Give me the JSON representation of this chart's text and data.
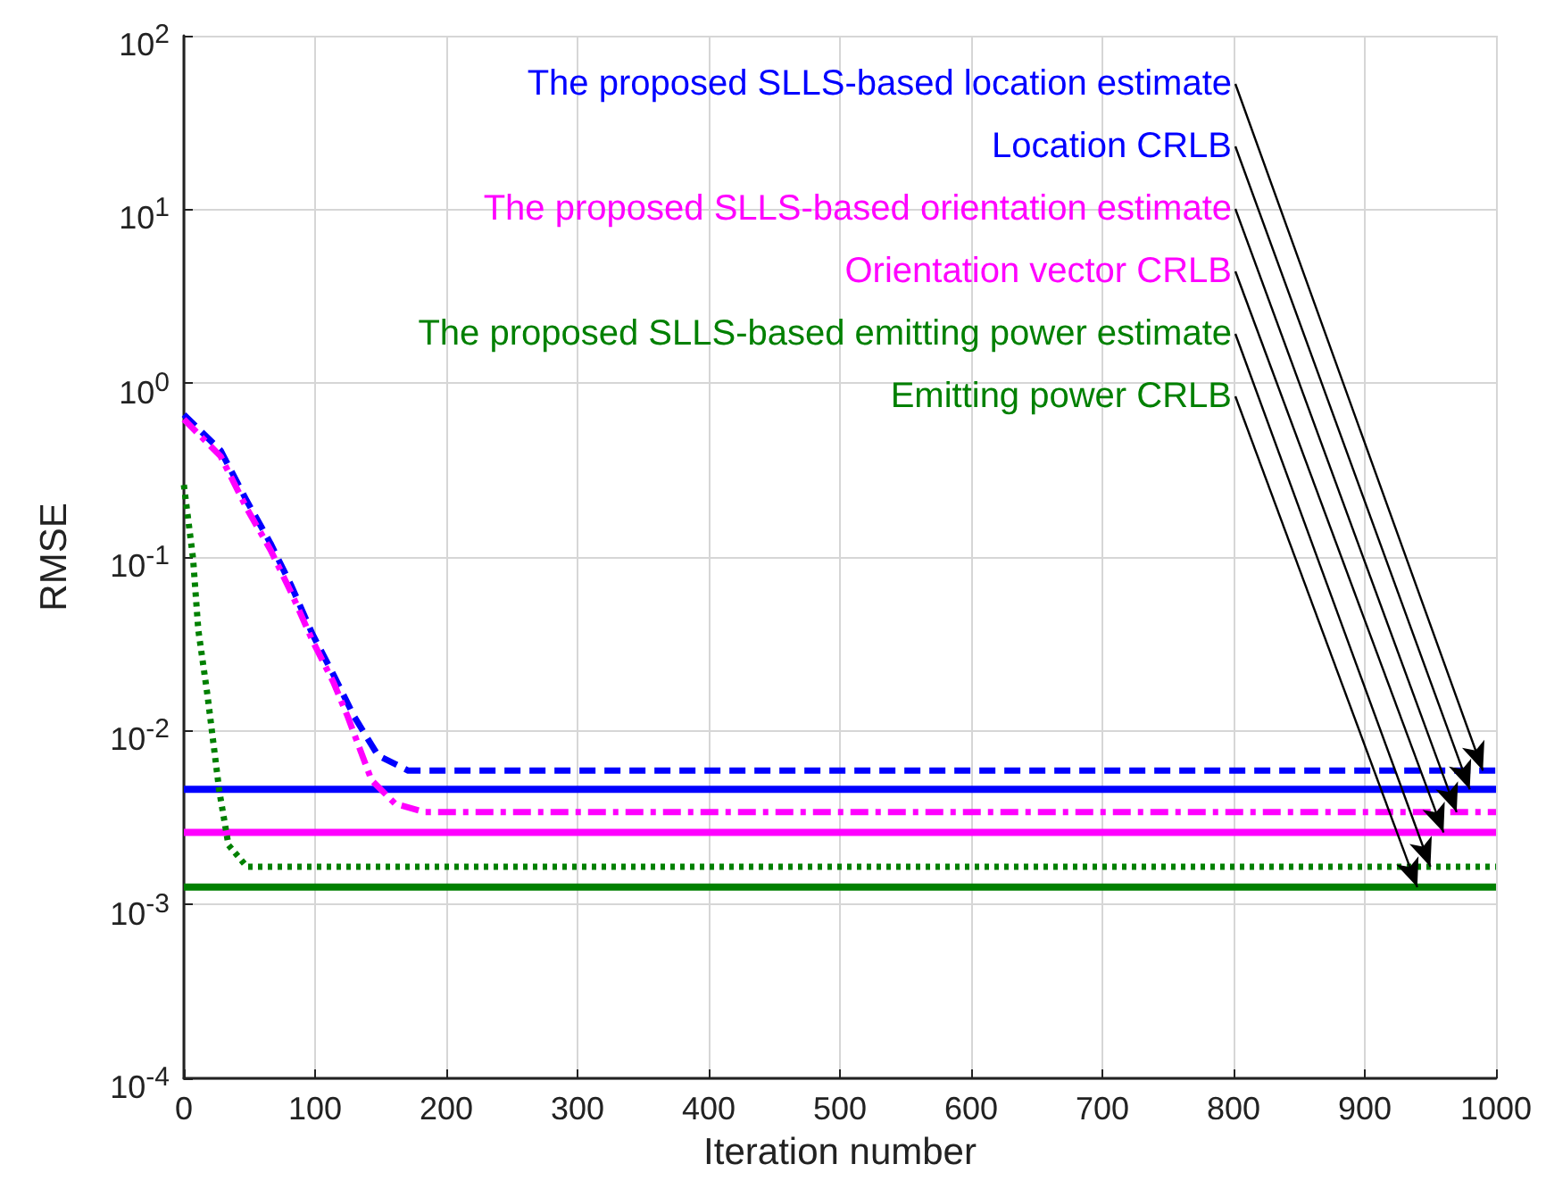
{
  "chart_data": {
    "type": "line",
    "xlabel": "Iteration number",
    "ylabel": "RMSE",
    "xlim": [
      0,
      1000
    ],
    "xticks": [
      0,
      100,
      200,
      300,
      400,
      500,
      600,
      700,
      800,
      900,
      1000
    ],
    "ylim": [
      0.0001,
      100
    ],
    "yticks": [
      {
        "value": 0.0001,
        "label": "10$^{-4}$"
      },
      {
        "value": 0.001,
        "label": "10$^{-3}$"
      },
      {
        "value": 0.01,
        "label": "10$^{-2}$"
      },
      {
        "value": 0.1,
        "label": "10$^{-1}$"
      },
      {
        "value": 1,
        "label": "10$^{0}$"
      },
      {
        "value": 10,
        "label": "10$^{1}$"
      },
      {
        "value": 100,
        "label": "10$^{2}$"
      }
    ],
    "log": "y",
    "grid": true,
    "marker": "none",
    "series": [
      {
        "color": "#0000ff",
        "line_style": "dashed",
        "x": [
          0,
          28,
          48,
          66,
          82,
          98,
          114,
          130,
          148,
          171,
          1000
        ],
        "values": [
          0.66,
          0.41,
          0.21,
          0.12,
          0.068,
          0.036,
          0.021,
          0.012,
          0.0072,
          0.0059,
          0.0059
        ]
      },
      {
        "color": "#0000ff",
        "line_style": "solid",
        "x": [
          0,
          1000
        ],
        "values": [
          0.0046,
          0.0046
        ]
      },
      {
        "color": "#ff00ff",
        "line_style": "dashdot",
        "x": [
          0,
          28,
          48,
          66,
          82,
          98,
          114,
          125,
          143,
          161,
          184,
          1000
        ],
        "values": [
          0.62,
          0.38,
          0.19,
          0.11,
          0.062,
          0.033,
          0.019,
          0.012,
          0.0052,
          0.0038,
          0.0034,
          0.0034
        ]
      },
      {
        "color": "#ff00ff",
        "line_style": "solid",
        "x": [
          0,
          1000
        ],
        "values": [
          0.0026,
          0.0026
        ]
      },
      {
        "color": "#008000",
        "line_style": "dotted",
        "x": [
          0,
          7,
          11,
          18,
          27,
          34,
          48,
          1000
        ],
        "values": [
          0.26,
          0.098,
          0.038,
          0.016,
          0.0045,
          0.0022,
          0.00165,
          0.00165
        ]
      },
      {
        "color": "#008000",
        "line_style": "solid",
        "x": [
          0,
          1000
        ],
        "values": [
          0.00126,
          0.00126
        ]
      }
    ],
    "annotations": [
      {
        "text": "The proposed SLLS-based location estimate",
        "x": 990,
        "y": 0.0059
      },
      {
        "text": "Location CRLB",
        "x": 980,
        "y": 0.0046
      },
      {
        "text": "The proposed SLLS-based orientation estimate",
        "x": 970,
        "y": 0.0034
      },
      {
        "text": "Orientation vector CRLB",
        "x": 960,
        "y": 0.0026
      },
      {
        "text": "The proposed SLLS-based emitting power estimate",
        "x": 950,
        "y": 0.00165
      },
      {
        "text": "Emitting power CRLB",
        "x": 940,
        "y": 0.00126
      }
    ]
  }
}
